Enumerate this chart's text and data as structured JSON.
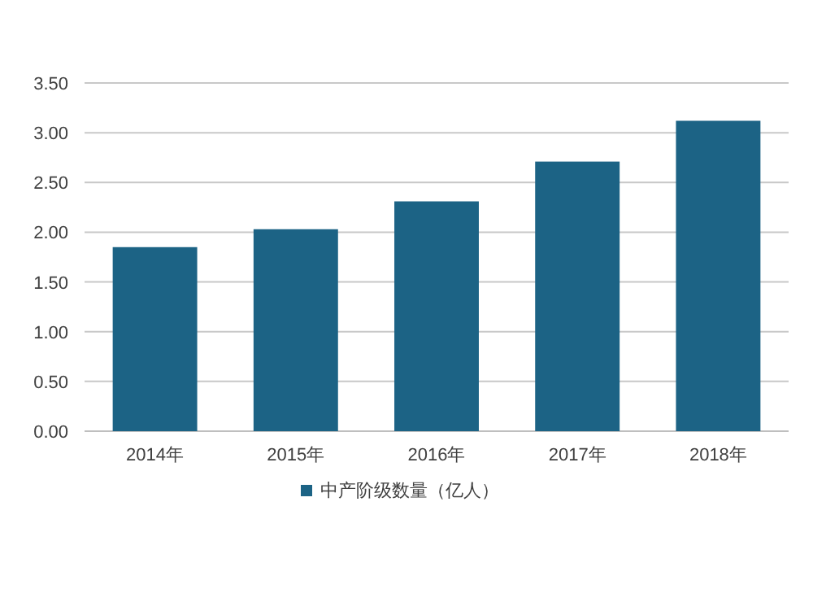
{
  "chart_data": {
    "type": "bar",
    "categories": [
      "2014年",
      "2015年",
      "2016年",
      "2017年",
      "2018年"
    ],
    "series": [
      {
        "name": "中产阶级数量（亿人）",
        "color": "#1c6385",
        "values": [
          1.85,
          2.03,
          2.31,
          2.71,
          3.12
        ]
      }
    ],
    "ylim": [
      0,
      3.5
    ],
    "yticks": [
      {
        "value": 0,
        "label": "0.00"
      },
      {
        "value": 0.5,
        "label": "0.50"
      },
      {
        "value": 1,
        "label": "1.00"
      },
      {
        "value": 1.5,
        "label": "1.50"
      },
      {
        "value": 2,
        "label": "2.00"
      },
      {
        "value": 2.5,
        "label": "2.50"
      },
      {
        "value": 3,
        "label": "3.00"
      },
      {
        "value": 3.5,
        "label": "3.50"
      }
    ],
    "grid": "y",
    "legend": "bottom"
  }
}
